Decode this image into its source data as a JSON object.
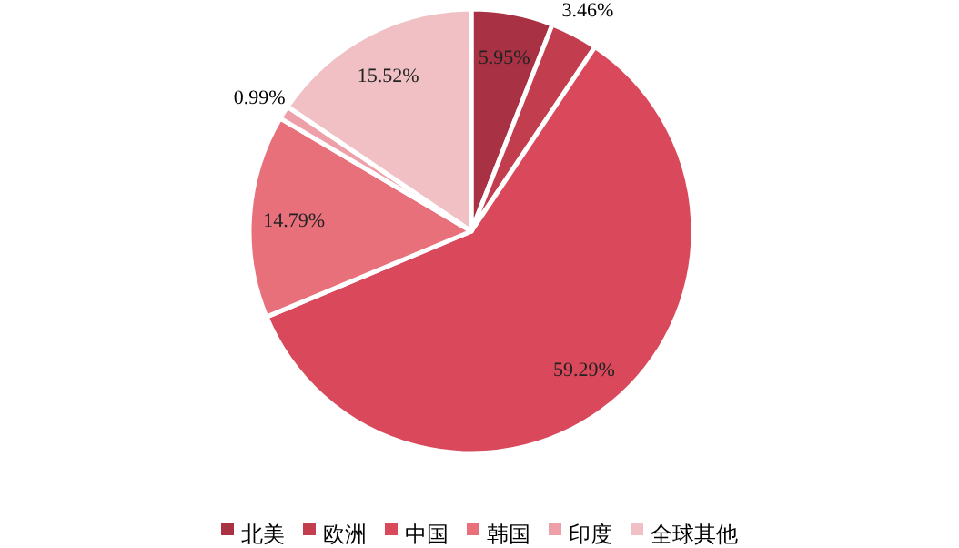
{
  "chart_data": {
    "type": "pie",
    "categories": [
      "北美",
      "欧洲",
      "中国",
      "韩国",
      "印度",
      "全球其他"
    ],
    "values": [
      5.95,
      3.46,
      59.29,
      14.79,
      0.99,
      15.52
    ],
    "value_labels": [
      "5.95%",
      "3.46%",
      "59.29%",
      "14.79%",
      "0.99%",
      "15.52%"
    ],
    "colors": [
      "#a83244",
      "#c23d4e",
      "#d9495b",
      "#e8707b",
      "#eda0a8",
      "#f0c0c5"
    ],
    "legend": "bottom"
  }
}
